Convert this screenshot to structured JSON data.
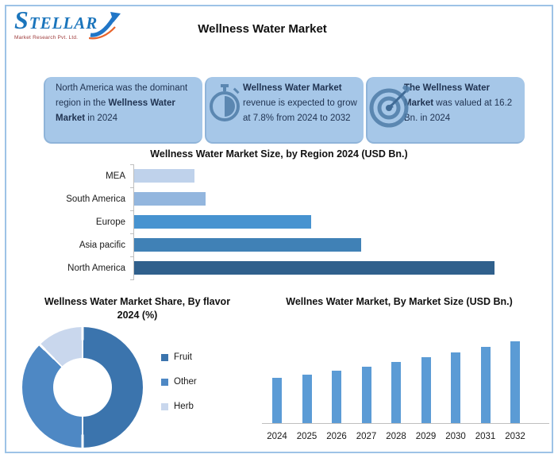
{
  "logo": {
    "name": "STELLAR",
    "tagline": "Market Research Pvt. Ltd.",
    "brand_color": "#1B75BC",
    "arrow_colors": {
      "blue": "#2176C7",
      "orange": "#E8642C"
    }
  },
  "header": {
    "title": "Wellness Water Market"
  },
  "colors": {
    "frame": "#9DC3E6",
    "info_box_bg": "#A6C7E8",
    "info_box_text": "#1F3250",
    "axis": "#BFBFBF",
    "icon_steel_blue": "#4E7CA8"
  },
  "info_boxes": {
    "items": [
      {
        "icon": null,
        "segments": [
          {
            "text": "North America was the dominant region in the ",
            "bold": false
          },
          {
            "text": "Wellness Water Market",
            "bold": true
          },
          {
            "text": " in 2024",
            "bold": false
          }
        ]
      },
      {
        "icon": "stopwatch-icon",
        "segments": [
          {
            "text": "Wellness Water Market",
            "bold": true
          },
          {
            "text": " revenue is expected to grow at 7.8% from 2024 to 2032",
            "bold": false
          }
        ]
      },
      {
        "icon": "target-icon",
        "segments": [
          {
            "text": "The Wellness Water Market",
            "bold": true
          },
          {
            "text": " was valued at 16.2 Bn. in 2024",
            "bold": false
          }
        ]
      }
    ]
  },
  "chart_data": [
    {
      "type": "bar",
      "orientation": "horizontal",
      "title": "Wellness Water Market Size, by Region 2024 (USD Bn.)",
      "categories": [
        "MEA",
        "South America",
        "Europe",
        "Asia pacific",
        "North America"
      ],
      "values": [
        1.1,
        1.3,
        3.2,
        4.1,
        6.5
      ],
      "colors": [
        "#BFD2EB",
        "#93B6DE",
        "#4793D0",
        "#4081B6",
        "#30608C"
      ],
      "xlim": [
        0,
        6.6
      ],
      "grid": false,
      "value_labels": false
    },
    {
      "type": "pie",
      "subtype": "donut",
      "title": "Wellness Water Market Share, By flavor 2024 (%)",
      "labels": [
        "Fruit",
        "Other",
        "Herb"
      ],
      "values": [
        50,
        37.5,
        12.5
      ],
      "colors": [
        "#3B74AD",
        "#4E88C4",
        "#C9D7ED"
      ],
      "legend_position": "right",
      "start_angle_deg": 0
    },
    {
      "type": "bar",
      "orientation": "vertical",
      "title": "Wellnes Water Market, By Market Size (USD Bn.)",
      "categories": [
        "2024",
        "2025",
        "2026",
        "2027",
        "2028",
        "2029",
        "2030",
        "2031",
        "2032"
      ],
      "values": [
        16.2,
        17.5,
        18.8,
        20.3,
        21.9,
        23.6,
        25.4,
        27.4,
        29.5
      ],
      "color": "#5B9BD5",
      "ylim": [
        0,
        32
      ],
      "grid": false,
      "value_labels": false
    }
  ]
}
